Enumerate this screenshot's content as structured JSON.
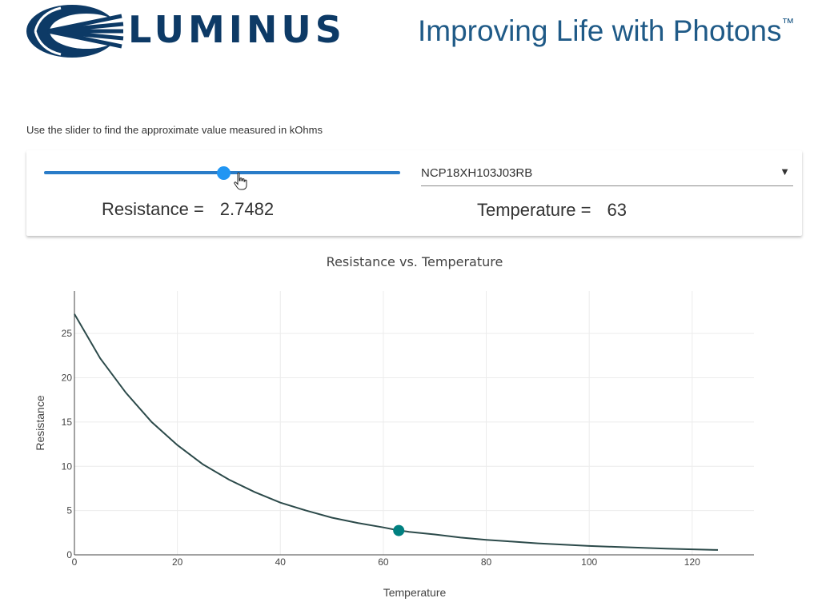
{
  "brand": {
    "name": "LUMINUS",
    "tagline": "Improving Life with Photons",
    "trademark": "™",
    "color": "#0d3a66"
  },
  "instruction": "Use the slider to find the approximate value measured in kOhms",
  "control": {
    "slider": {
      "value": 63,
      "min": 0,
      "max": 125,
      "color": "#2196f3"
    },
    "part_select": {
      "selected": "NCP18XH103J03RB",
      "arrow": "▼"
    },
    "resistance_label": "Resistance =",
    "resistance_value": "2.7482",
    "temperature_label": "Temperature =",
    "temperature_value": "63"
  },
  "chart_data": {
    "type": "line",
    "title": "Resistance vs. Temperature",
    "xlabel": "Temperature",
    "ylabel": "Resistance",
    "xlim": [
      0,
      132
    ],
    "ylim": [
      0,
      29.8
    ],
    "xticks": [
      0,
      20,
      40,
      60,
      80,
      100,
      120
    ],
    "yticks": [
      0,
      5,
      10,
      15,
      20,
      25
    ],
    "grid": true,
    "line_color": "#2c4a4a",
    "marker_color": "#008080",
    "marker": {
      "x": 63,
      "y": 2.7482
    },
    "series": [
      {
        "x": [
          0,
          5,
          10,
          15,
          20,
          25,
          30,
          35,
          40,
          45,
          50,
          55,
          60,
          63,
          65,
          70,
          75,
          80,
          85,
          90,
          95,
          100,
          105,
          110,
          115,
          120,
          125
        ],
        "values": [
          27.2,
          22.2,
          18.3,
          15.0,
          12.4,
          10.2,
          8.5,
          7.1,
          5.9,
          5.0,
          4.2,
          3.6,
          3.1,
          2.75,
          2.6,
          2.3,
          1.95,
          1.7,
          1.5,
          1.3,
          1.15,
          1.0,
          0.9,
          0.8,
          0.7,
          0.62,
          0.55
        ]
      }
    ]
  }
}
